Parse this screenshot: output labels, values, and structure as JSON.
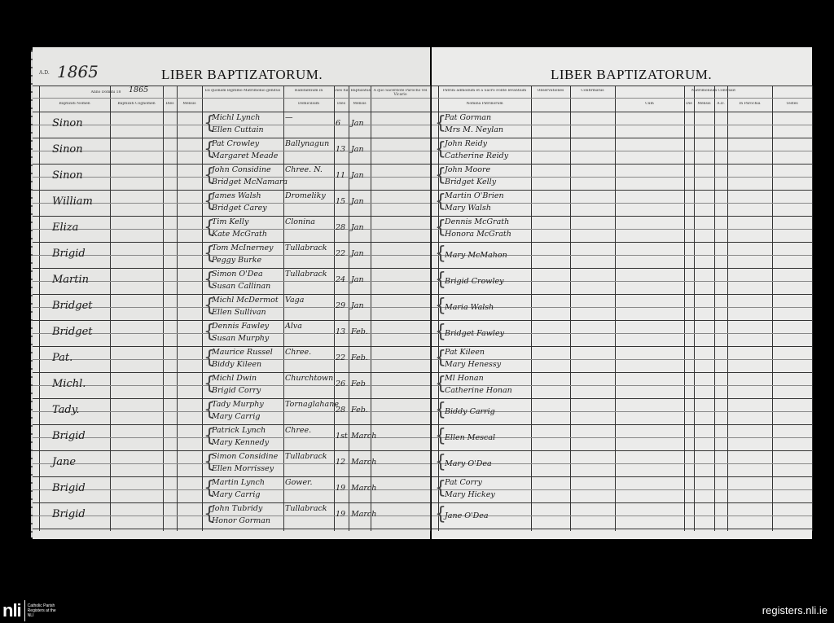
{
  "left_page": {
    "title": "LIBER BAPTIZATORUM.",
    "year_prefix": "A.D.",
    "year": "1865",
    "anno_domini": "Anno Domini 18",
    "anno_year": "1865",
    "headers": [
      "Baptizati Nomen",
      "Baptizati Cognomen",
      "Dies",
      "Mensis",
      "Ex quonam legitimo Matrimonio genitus",
      "Habitantium in",
      "Domicilium",
      "Dies fuit Baptizatus",
      "Dies",
      "Mensis",
      "A quo Sacerdote Parocho vel Vicario"
    ]
  },
  "right_page": {
    "title": "LIBER BAPTIZATORUM.",
    "headers": [
      "Patrini admodum et a Sacro Fonte levantium",
      "Nomina Patrinorum",
      "Observationes",
      "Confirmatus",
      "Matrimonium Contraxit",
      "Cum",
      "Die",
      "Mensis",
      "A.D.",
      "In Parochia",
      "Testes"
    ]
  },
  "entries": [
    {
      "name": "Sinon",
      "father": "Michl Lynch",
      "mother": "Ellen Cuttain",
      "domicile": "—",
      "day": "6",
      "month": "Jan",
      "sponsor1": "Pat Gorman",
      "sponsor2": "Mrs M. Neylan"
    },
    {
      "name": "Sinon",
      "father": "Pat Crowley",
      "mother": "Margaret Meade",
      "domicile": "Ballynagun",
      "day": "13",
      "month": "Jan",
      "sponsor1": "John Reidy",
      "sponsor2": "Catherine Reidy"
    },
    {
      "name": "Sinon",
      "father": "John Considine",
      "mother": "Bridget McNamara",
      "domicile": "Chree. N.",
      "day": "11",
      "month": "Jan",
      "sponsor1": "John Moore",
      "sponsor2": "Bridget Kelly"
    },
    {
      "name": "William",
      "father": "James Walsh",
      "mother": "Bridget Carey",
      "domicile": "Dromeliky",
      "day": "15",
      "month": "Jan",
      "sponsor1": "Martin O'Brien",
      "sponsor2": "Mary Walsh"
    },
    {
      "name": "Eliza",
      "father": "Tim Kelly",
      "mother": "Kate McGrath",
      "domicile": "Clonina",
      "day": "28",
      "month": "Jan",
      "sponsor1": "Dennis McGrath",
      "sponsor2": "Honora McGrath"
    },
    {
      "name": "Brigid",
      "father": "Tom McInerney",
      "mother": "Peggy Burke",
      "domicile": "Tullabrack",
      "day": "22",
      "month": "Jan",
      "sponsor1": "Mary McMahon",
      "sponsor2": ""
    },
    {
      "name": "Martin",
      "father": "Simon O'Dea",
      "mother": "Susan Callinan",
      "domicile": "Tullabrack",
      "day": "24",
      "month": "Jan",
      "sponsor1": "Brigid Crowley",
      "sponsor2": ""
    },
    {
      "name": "Bridget",
      "father": "Michl McDermot",
      "mother": "Ellen Sullivan",
      "domicile": "Vaga",
      "day": "29",
      "month": "Jan",
      "sponsor1": "Maria Walsh",
      "sponsor2": ""
    },
    {
      "name": "Bridget",
      "father": "Dennis Fawley",
      "mother": "Susan Murphy",
      "domicile": "Alva",
      "day": "13",
      "month": "Feb.",
      "sponsor1": "Bridget Fawley",
      "sponsor2": ""
    },
    {
      "name": "Pat.",
      "father": "Maurice Russel",
      "mother": "Biddy Kileen",
      "domicile": "Chree.",
      "day": "22",
      "month": "Feb.",
      "sponsor1": "Pat Kileen",
      "sponsor2": "Mary Henessy"
    },
    {
      "name": "Michl.",
      "father": "Michl Dwin",
      "mother": "Brigid Corry",
      "domicile": "Churchtown",
      "day": "26",
      "month": "Feb",
      "sponsor1": "Ml Honan",
      "sponsor2": "Catherine Honan"
    },
    {
      "name": "Tady.",
      "father": "Tady Murphy",
      "mother": "Mary Carrig",
      "domicile": "Tornaglahane",
      "day": "28",
      "month": "Feb.",
      "sponsor1": "Biddy Carrig",
      "sponsor2": ""
    },
    {
      "name": "Brigid",
      "father": "Patrick Lynch",
      "mother": "Mary Kennedy",
      "domicile": "Chree.",
      "day": "1st",
      "month": "March",
      "sponsor1": "Ellen Mescal",
      "sponsor2": ""
    },
    {
      "name": "Jane",
      "father": "Simon Considine",
      "mother": "Ellen Morrissey",
      "domicile": "Tullabrack",
      "day": "12",
      "month": "March",
      "sponsor1": "Mary O'Dea",
      "sponsor2": ""
    },
    {
      "name": "Brigid",
      "father": "Martin Lynch",
      "mother": "Mary Carrig",
      "domicile": "Gower.",
      "day": "19",
      "month": "March",
      "sponsor1": "Pat Corry",
      "sponsor2": "Mary Hickey"
    },
    {
      "name": "Brigid",
      "father": "John Tubridy",
      "mother": "Honor Gorman",
      "domicile": "Tullabrack",
      "day": "19",
      "month": "March",
      "sponsor1": "Jane O'Dea",
      "sponsor2": ""
    }
  ],
  "footer": {
    "logo": "nli",
    "logo_text": "Catholic Parish Registers at the NLI",
    "url": "registers.nli.ie"
  }
}
